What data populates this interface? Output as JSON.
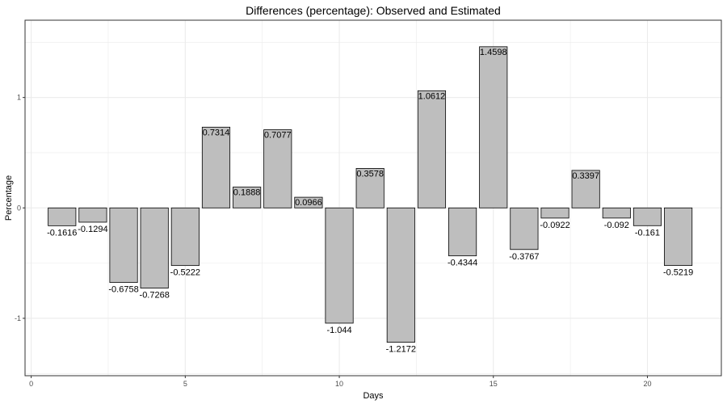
{
  "chart_data": {
    "type": "bar",
    "title": "Differences (percentage): Observed and Estimated",
    "xlabel": "Days",
    "ylabel": "Percentage",
    "x": [
      1,
      2,
      3,
      4,
      5,
      6,
      7,
      8,
      9,
      10,
      11,
      12,
      13,
      14,
      15,
      16,
      17,
      18,
      19,
      20,
      21
    ],
    "values": [
      -0.1616,
      -0.1294,
      -0.6758,
      -0.7268,
      -0.5222,
      0.7314,
      0.1888,
      0.7077,
      0.0966,
      -1.044,
      0.3578,
      -1.2172,
      1.0612,
      -0.4344,
      1.4598,
      -0.3767,
      -0.0922,
      0.3397,
      -0.092,
      -0.161,
      -0.5219
    ],
    "labels": [
      "-0.1616",
      "-0.1294",
      "-0.6758",
      "-0.7268",
      "-0.5222",
      "0.7314",
      "0.1888",
      "0.7077",
      "0.0966",
      "-1.044",
      "0.3578",
      "-1.2172",
      "1.0612",
      "-0.4344",
      "1.4598",
      "-0.3767",
      "-0.0922",
      "0.3397",
      "-0.092",
      "-0.161",
      "-0.5219"
    ],
    "xlim": [
      -0.2,
      22.4
    ],
    "ylim": [
      -1.52,
      1.7
    ],
    "x_ticks": [
      0,
      5,
      10,
      15,
      20
    ],
    "x_tick_labels": [
      "0",
      "5",
      "10",
      "15",
      "20"
    ],
    "y_ticks": [
      -1,
      0,
      1
    ],
    "y_tick_labels": [
      "-1",
      "0",
      "1"
    ],
    "grid": true,
    "bar_fill": "#bebebe",
    "bar_stroke": "#000000",
    "grid_color": "#ebebeb",
    "panel_border": "#333333"
  }
}
